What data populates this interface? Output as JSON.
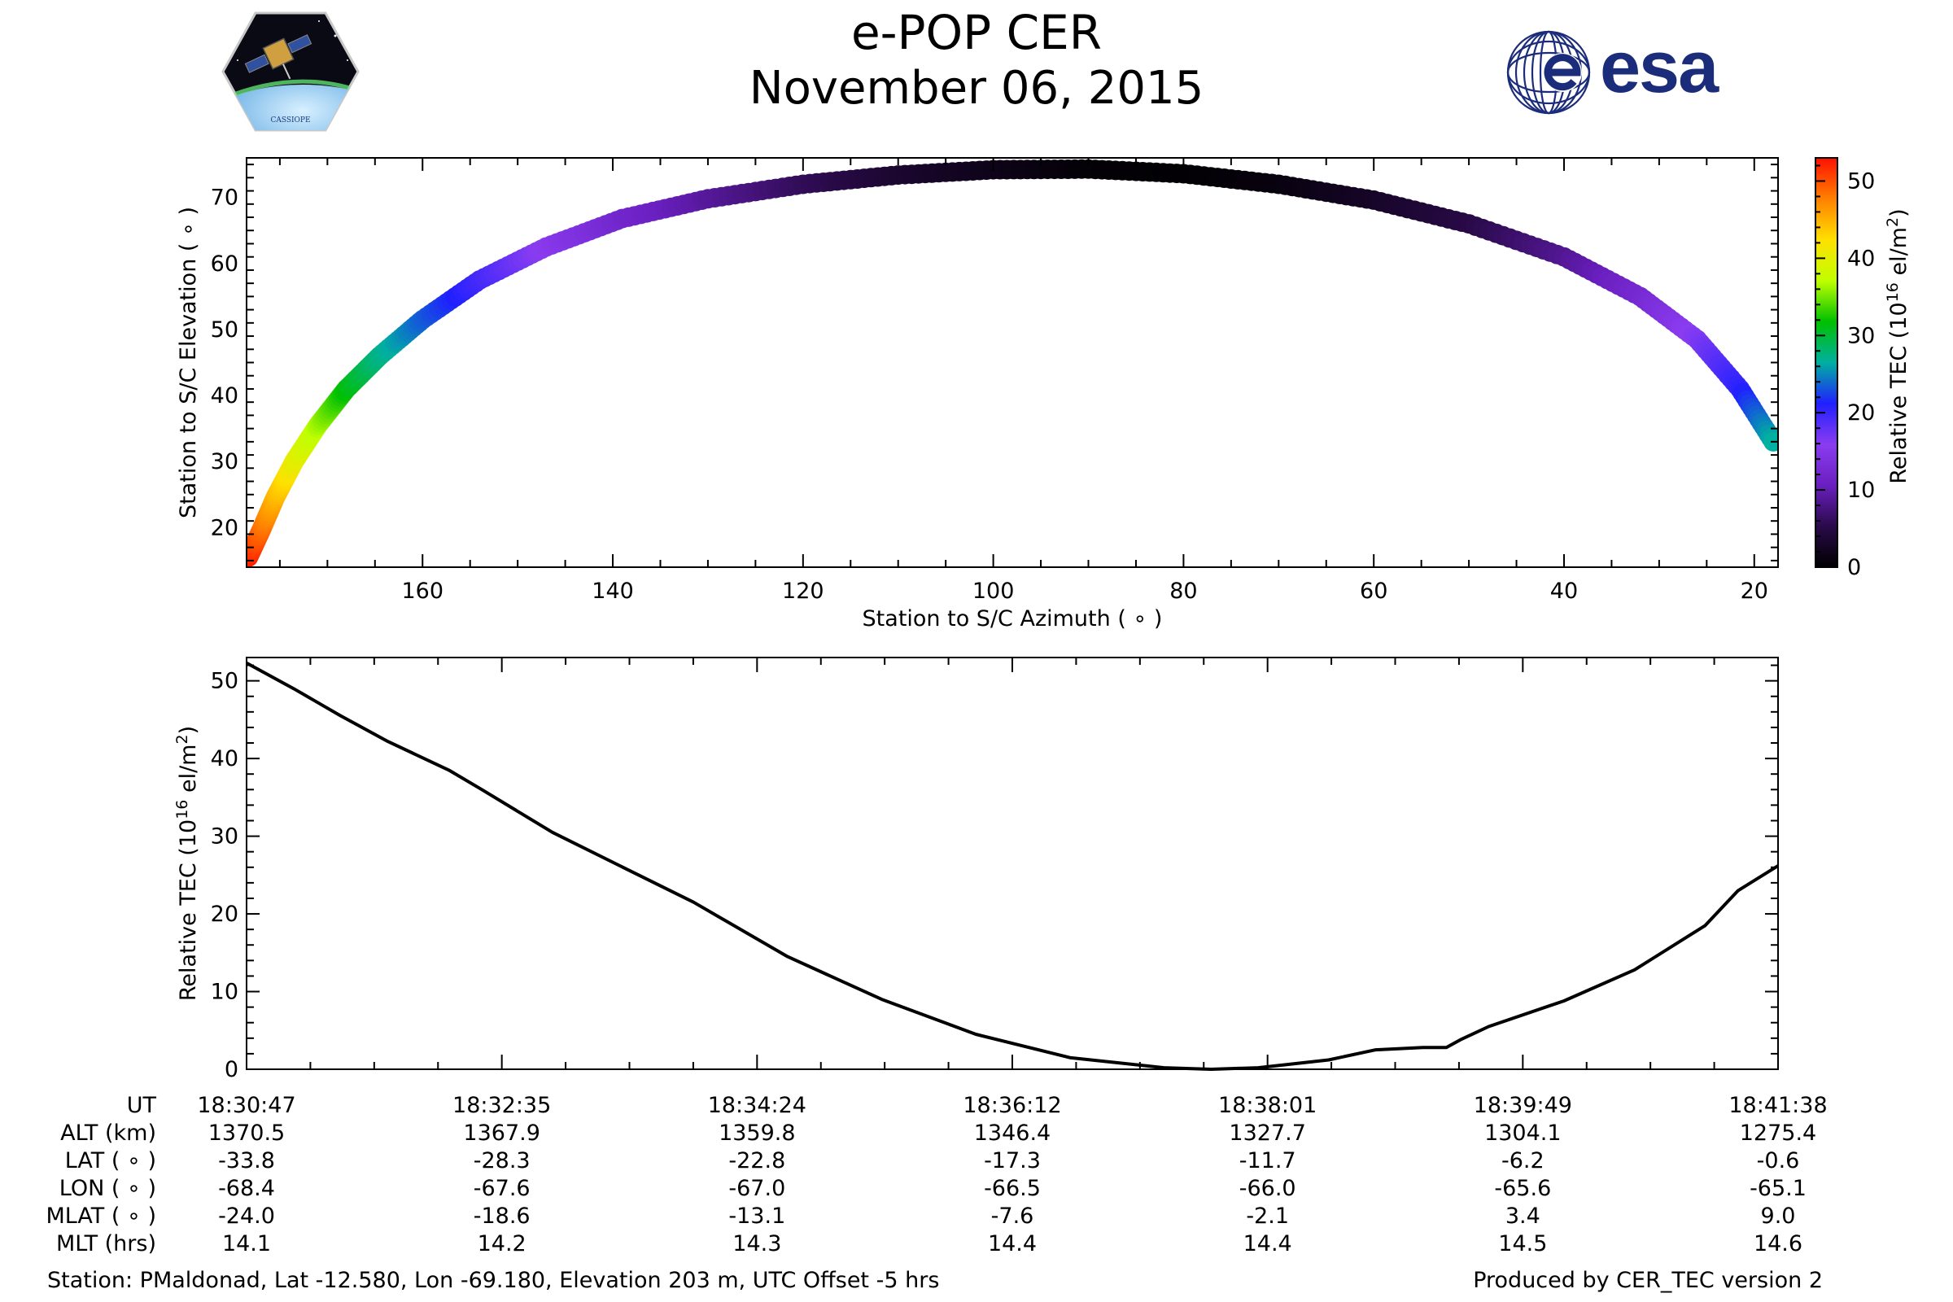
{
  "header": {
    "title_line1": "e-POP CER",
    "title_line2": "November 06, 2015",
    "logo_left_label": "CASSIOPE",
    "logo_right_label": "esa"
  },
  "colors": {
    "axis": "#000000",
    "tec_line": "#000000",
    "esa_blue": "#1b2c7a",
    "colormap_stops": [
      "#000000",
      "#2a0a4a",
      "#6a1fc0",
      "#8a3cf0",
      "#2020ff",
      "#00b0a0",
      "#00c000",
      "#c0ff00",
      "#ffe000",
      "#ff8000",
      "#ff1000"
    ]
  },
  "chart_data": [
    {
      "type": "scatter",
      "name": "elevation-azimuth-track",
      "xlabel": "Station to S/C Azimuth ( ∘ )",
      "ylabel": "Station to S/C Elevation ( ∘ )",
      "xlim": [
        178.5,
        17.5
      ],
      "ylim": [
        14,
        76
      ],
      "xticks": [
        160,
        140,
        120,
        100,
        80,
        60,
        40,
        20
      ],
      "yticks": [
        20,
        30,
        40,
        50,
        60,
        70
      ],
      "color_by": "Relative TEC",
      "points": [
        {
          "az": 178.3,
          "el": 15.5,
          "tec": 52.3
        },
        {
          "az": 177.0,
          "el": 19.5,
          "tec": 49.0
        },
        {
          "az": 175.5,
          "el": 24.5,
          "tec": 45.0
        },
        {
          "az": 173.5,
          "el": 30.0,
          "tec": 40.5
        },
        {
          "az": 171.0,
          "el": 35.5,
          "tec": 36.5
        },
        {
          "az": 168.0,
          "el": 41.0,
          "tec": 31.5
        },
        {
          "az": 164.5,
          "el": 46.0,
          "tec": 27.5
        },
        {
          "az": 160.0,
          "el": 51.5,
          "tec": 23.5
        },
        {
          "az": 154.0,
          "el": 57.5,
          "tec": 19.5
        },
        {
          "az": 147.0,
          "el": 62.5,
          "tec": 15.5
        },
        {
          "az": 139.0,
          "el": 66.8,
          "tec": 12.0
        },
        {
          "az": 130.0,
          "el": 69.8,
          "tec": 9.0
        },
        {
          "az": 120.0,
          "el": 72.0,
          "tec": 6.0
        },
        {
          "az": 110.0,
          "el": 73.4,
          "tec": 3.5
        },
        {
          "az": 100.0,
          "el": 74.2,
          "tec": 1.8
        },
        {
          "az": 90.0,
          "el": 74.3,
          "tec": 0.5
        },
        {
          "az": 80.0,
          "el": 73.6,
          "tec": 0.2
        },
        {
          "az": 70.0,
          "el": 72.0,
          "tec": 1.0
        },
        {
          "az": 60.0,
          "el": 69.6,
          "tec": 2.8
        },
        {
          "az": 50.0,
          "el": 66.0,
          "tec": 5.0
        },
        {
          "az": 40.0,
          "el": 61.0,
          "tec": 8.5
        },
        {
          "az": 32.0,
          "el": 55.0,
          "tec": 12.5
        },
        {
          "az": 26.0,
          "el": 48.5,
          "tec": 16.5
        },
        {
          "az": 21.5,
          "el": 41.0,
          "tec": 20.5
        },
        {
          "az": 18.0,
          "el": 33.0,
          "tec": 26.5
        }
      ]
    },
    {
      "type": "line",
      "name": "relative-tec-time-series",
      "xlabel": "",
      "ylabel": "Relative TEC (10^16 el/m^2)",
      "ylabel_parts": {
        "pre": "Relative TEC (10",
        "sup1": "16",
        "mid": " el/m",
        "sup2": "2",
        "post": ")"
      },
      "xlim": [
        0,
        651
      ],
      "ylim": [
        0,
        53
      ],
      "yticks": [
        0,
        10,
        20,
        30,
        40,
        50
      ],
      "x_unit": "seconds after 18:30:47",
      "series": [
        {
          "name": "Relative TEC",
          "x": [
            0,
            20,
            40,
            60,
            86,
            100,
            130,
            160,
            190,
            230,
            270,
            310,
            350,
            390,
            410,
            430,
            460,
            480,
            500,
            510,
            516,
            528,
            560,
            590,
            620,
            634,
            651
          ],
          "y": [
            52.3,
            49.0,
            45.5,
            42.2,
            38.5,
            36.0,
            30.5,
            26.0,
            21.5,
            14.5,
            9.0,
            4.5,
            1.5,
            0.2,
            0.0,
            0.2,
            1.2,
            2.5,
            2.8,
            2.8,
            3.8,
            5.5,
            8.8,
            12.8,
            18.5,
            23.0,
            26.2
          ]
        }
      ],
      "colorbar": {
        "label": "Relative TEC (10^16 el/m^2)",
        "range": [
          0,
          53
        ],
        "ticks": [
          0,
          10,
          20,
          30,
          40,
          50
        ]
      }
    }
  ],
  "info_table": {
    "row_labels": [
      "UT",
      "ALT (km)",
      "LAT ( ∘ )",
      "LON ( ∘ )",
      "MLAT ( ∘ )",
      "MLT (hrs)"
    ],
    "columns": [
      {
        "ut": "18:30:47",
        "alt": "1370.5",
        "lat": "-33.8",
        "lon": "-68.4",
        "mlat": "-24.0",
        "mlt": "14.1"
      },
      {
        "ut": "18:32:35",
        "alt": "1367.9",
        "lat": "-28.3",
        "lon": "-67.6",
        "mlat": "-18.6",
        "mlt": "14.2"
      },
      {
        "ut": "18:34:24",
        "alt": "1359.8",
        "lat": "-22.8",
        "lon": "-67.0",
        "mlat": "-13.1",
        "mlt": "14.3"
      },
      {
        "ut": "18:36:12",
        "alt": "1346.4",
        "lat": "-17.3",
        "lon": "-66.5",
        "mlat": "-7.6",
        "mlt": "14.4"
      },
      {
        "ut": "18:38:01",
        "alt": "1327.7",
        "lat": "-11.7",
        "lon": "-66.0",
        "mlat": "-2.1",
        "mlt": "14.4"
      },
      {
        "ut": "18:39:49",
        "alt": "1304.1",
        "lat": "-6.2",
        "lon": "-65.6",
        "mlat": "3.4",
        "mlt": "14.5"
      },
      {
        "ut": "18:41:38",
        "alt": "1275.4",
        "lat": "-0.6",
        "lon": "-65.1",
        "mlat": "9.0",
        "mlt": "14.6"
      }
    ]
  },
  "footer": {
    "station": "Station: PMaldonad, Lat -12.580, Lon -69.180, Elevation 203 m, UTC Offset -5 hrs",
    "produced_by": "Produced by CER_TEC version 2"
  }
}
